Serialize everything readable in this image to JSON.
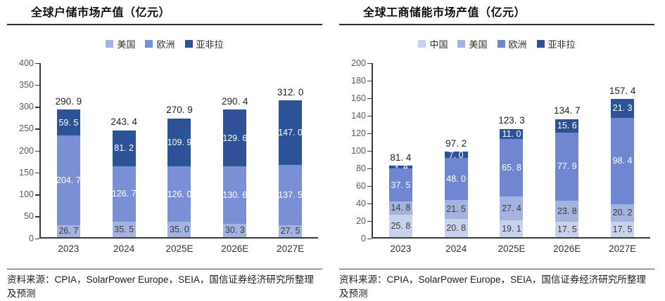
{
  "chart_data": [
    {
      "type": "bar",
      "stacked": true,
      "title": "全球户储市场产值（亿元）",
      "source": "资料来源：CPIA，SolarPower Europe，SEIA，国信证券经济研究所整理及预测",
      "categories": [
        "2023",
        "2024",
        "2025E",
        "2026E",
        "2027E"
      ],
      "series": [
        {
          "name": "美国",
          "key": "usa",
          "color": "#a4b2e0",
          "label_color": "#3b3b3b",
          "values": [
            26.7,
            35.5,
            35.0,
            30.3,
            27.5
          ],
          "labels": [
            "26. 7",
            "35. 5",
            "35. 0",
            "30. 3",
            "27. 5"
          ]
        },
        {
          "name": "欧洲",
          "key": "europe",
          "color": "#7a8fd6",
          "label_color": "#ffffff",
          "values": [
            204.7,
            126.7,
            126.0,
            130.6,
            137.5
          ],
          "labels": [
            "204. 7",
            "126. 7",
            "126. 0",
            "130. 6",
            "137. 5"
          ]
        },
        {
          "name": "亚非拉",
          "key": "asia-africa-latam",
          "color": "#2d5295",
          "label_color": "#ffffff",
          "values": [
            59.5,
            81.2,
            109.9,
            129.6,
            147.0
          ],
          "labels": [
            "59. 5",
            "81. 2",
            "109. 9",
            "129. 6",
            "147. 0"
          ]
        }
      ],
      "totals": [
        290.9,
        243.4,
        270.9,
        290.4,
        312.0
      ],
      "total_labels": [
        "290. 9",
        "243. 4",
        "270. 9",
        "290. 4",
        "312. 0"
      ],
      "xlabel": "",
      "ylabel": "",
      "ylim": [
        0,
        400
      ],
      "yticks": [
        0,
        50,
        100,
        150,
        200,
        250,
        300,
        350,
        400
      ],
      "grid": false,
      "legend_position": "top"
    },
    {
      "type": "bar",
      "stacked": true,
      "title": "全球工商储能市场产值（亿元）",
      "source": "资料来源：CPIA，SolarPower Europe，SEIA，国信证券经济研究所整理及预测",
      "categories": [
        "2023",
        "2024",
        "2025E",
        "2026E",
        "2027E"
      ],
      "series": [
        {
          "name": "中国",
          "key": "china",
          "color": "#c9d2ed",
          "label_color": "#3b3b3b",
          "values": [
            25.8,
            20.8,
            19.1,
            17.5,
            17.5
          ],
          "labels": [
            "25. 8",
            "20. 8",
            "19. 1",
            "17. 5",
            "17. 5"
          ]
        },
        {
          "name": "美国",
          "key": "usa",
          "color": "#a4b2e0",
          "label_color": "#3b3b3b",
          "values": [
            14.8,
            21.5,
            27.4,
            23.8,
            20.2
          ],
          "labels": [
            "14. 8",
            "21. 5",
            "27. 4",
            "23. 8",
            "20. 2"
          ]
        },
        {
          "name": "欧洲",
          "key": "europe",
          "color": "#7086d0",
          "label_color": "#ffffff",
          "values": [
            37.5,
            48.0,
            65.8,
            77.9,
            98.4
          ],
          "labels": [
            "37. 5",
            "48. 0",
            "65. 8",
            "77. 9",
            "98. 4"
          ]
        },
        {
          "name": "亚非拉",
          "key": "asia-africa-latam",
          "color": "#2d5295",
          "label_color": "#ffffff",
          "values": [
            3.4,
            7.0,
            11.0,
            15.6,
            21.3
          ],
          "labels": [
            "3. 4",
            "7. 0",
            "11. 0",
            "15. 6",
            "21. 3"
          ]
        }
      ],
      "totals": [
        81.4,
        97.2,
        123.3,
        134.7,
        157.4
      ],
      "total_labels": [
        "81. 4",
        "97. 2",
        "123. 3",
        "134. 7",
        "157. 4"
      ],
      "xlabel": "",
      "ylabel": "",
      "ylim": [
        0,
        200
      ],
      "yticks": [
        0,
        20,
        40,
        60,
        80,
        100,
        120,
        140,
        160,
        180,
        200
      ],
      "grid": false,
      "legend_position": "top"
    }
  ]
}
